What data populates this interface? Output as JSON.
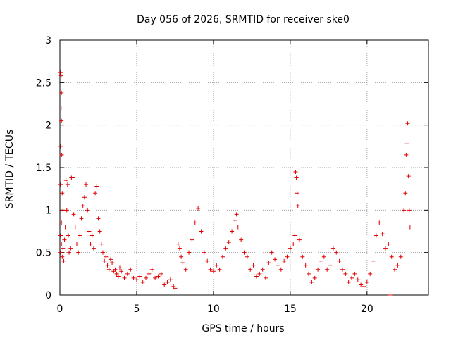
{
  "chart_data": {
    "type": "scatter",
    "title": "Day 056 of 2026, SRMTID for receiver ske0",
    "xlabel": "GPS time / hours",
    "ylabel": "SRMTID / TECUs",
    "xlim": [
      0,
      24
    ],
    "ylim": [
      0,
      3
    ],
    "xticks": [
      0,
      5,
      10,
      15,
      20
    ],
    "xtick_labels": [
      "0",
      "5",
      "10",
      "15",
      "20"
    ],
    "yticks": [
      0,
      0.5,
      1,
      1.5,
      2,
      2.5,
      3
    ],
    "ytick_labels": [
      "0",
      "0.5",
      "1",
      "1.5",
      "2",
      "2.5",
      "3"
    ],
    "grid": true,
    "marker": "+",
    "color": "#e00000",
    "series": [
      {
        "name": "SRMTID",
        "points": [
          [
            0.05,
            2.62
          ],
          [
            0.08,
            2.58
          ],
          [
            0.1,
            2.38
          ],
          [
            0.08,
            2.2
          ],
          [
            0.1,
            2.05
          ],
          [
            0.05,
            1.75
          ],
          [
            0.12,
            1.65
          ],
          [
            0.05,
            1.3
          ],
          [
            0.15,
            1.2
          ],
          [
            0.2,
            1.0
          ],
          [
            0.1,
            0.85
          ],
          [
            0.05,
            0.7
          ],
          [
            0.1,
            0.6
          ],
          [
            0.2,
            0.55
          ],
          [
            0.05,
            0.5
          ],
          [
            0.15,
            0.45
          ],
          [
            0.25,
            0.4
          ],
          [
            0.3,
            0.65
          ],
          [
            0.35,
            0.8
          ],
          [
            0.4,
            1.35
          ],
          [
            0.5,
            1.3
          ],
          [
            0.45,
            1.0
          ],
          [
            0.55,
            0.7
          ],
          [
            0.6,
            0.5
          ],
          [
            0.7,
            0.55
          ],
          [
            0.75,
            1.38
          ],
          [
            0.85,
            1.38
          ],
          [
            0.9,
            0.95
          ],
          [
            1.0,
            0.8
          ],
          [
            1.1,
            0.6
          ],
          [
            1.2,
            0.5
          ],
          [
            1.3,
            0.7
          ],
          [
            1.4,
            0.9
          ],
          [
            1.5,
            1.05
          ],
          [
            1.6,
            1.15
          ],
          [
            1.7,
            1.3
          ],
          [
            1.8,
            1.0
          ],
          [
            1.9,
            0.75
          ],
          [
            2.0,
            0.6
          ],
          [
            2.1,
            0.7
          ],
          [
            2.2,
            0.55
          ],
          [
            2.3,
            1.2
          ],
          [
            2.4,
            1.28
          ],
          [
            2.5,
            0.9
          ],
          [
            2.6,
            0.75
          ],
          [
            2.7,
            0.6
          ],
          [
            2.8,
            0.5
          ],
          [
            2.9,
            0.4
          ],
          [
            3.0,
            0.45
          ],
          [
            3.1,
            0.35
          ],
          [
            3.2,
            0.3
          ],
          [
            3.3,
            0.42
          ],
          [
            3.4,
            0.38
          ],
          [
            3.5,
            0.28
          ],
          [
            3.6,
            0.3
          ],
          [
            3.7,
            0.25
          ],
          [
            3.8,
            0.22
          ],
          [
            3.9,
            0.32
          ],
          [
            4.0,
            0.28
          ],
          [
            4.2,
            0.2
          ],
          [
            4.4,
            0.25
          ],
          [
            4.6,
            0.3
          ],
          [
            4.8,
            0.2
          ],
          [
            5.0,
            0.18
          ],
          [
            5.2,
            0.22
          ],
          [
            5.4,
            0.15
          ],
          [
            5.6,
            0.2
          ],
          [
            5.8,
            0.25
          ],
          [
            6.0,
            0.3
          ],
          [
            6.2,
            0.2
          ],
          [
            6.4,
            0.22
          ],
          [
            6.6,
            0.25
          ],
          [
            6.8,
            0.12
          ],
          [
            7.0,
            0.15
          ],
          [
            7.2,
            0.18
          ],
          [
            7.4,
            0.1
          ],
          [
            7.5,
            0.08
          ],
          [
            7.7,
            0.6
          ],
          [
            7.8,
            0.55
          ],
          [
            7.9,
            0.45
          ],
          [
            8.0,
            0.38
          ],
          [
            8.2,
            0.3
          ],
          [
            8.4,
            0.5
          ],
          [
            8.6,
            0.65
          ],
          [
            8.8,
            0.85
          ],
          [
            9.0,
            1.02
          ],
          [
            9.2,
            0.75
          ],
          [
            9.4,
            0.5
          ],
          [
            9.6,
            0.4
          ],
          [
            9.8,
            0.3
          ],
          [
            10.0,
            0.28
          ],
          [
            10.2,
            0.35
          ],
          [
            10.4,
            0.3
          ],
          [
            10.6,
            0.45
          ],
          [
            10.8,
            0.55
          ],
          [
            11.0,
            0.62
          ],
          [
            11.2,
            0.75
          ],
          [
            11.4,
            0.88
          ],
          [
            11.5,
            0.95
          ],
          [
            11.6,
            0.8
          ],
          [
            11.8,
            0.65
          ],
          [
            12.0,
            0.5
          ],
          [
            12.2,
            0.45
          ],
          [
            12.4,
            0.3
          ],
          [
            12.6,
            0.35
          ],
          [
            12.8,
            0.22
          ],
          [
            13.0,
            0.25
          ],
          [
            13.2,
            0.3
          ],
          [
            13.4,
            0.2
          ],
          [
            13.6,
            0.38
          ],
          [
            13.8,
            0.5
          ],
          [
            14.0,
            0.42
          ],
          [
            14.2,
            0.35
          ],
          [
            14.4,
            0.3
          ],
          [
            14.6,
            0.4
          ],
          [
            14.8,
            0.45
          ],
          [
            15.0,
            0.55
          ],
          [
            15.2,
            0.6
          ],
          [
            15.3,
            0.7
          ],
          [
            15.35,
            1.45
          ],
          [
            15.4,
            1.38
          ],
          [
            15.45,
            1.2
          ],
          [
            15.5,
            1.05
          ],
          [
            15.6,
            0.65
          ],
          [
            15.8,
            0.45
          ],
          [
            16.0,
            0.35
          ],
          [
            16.2,
            0.25
          ],
          [
            16.4,
            0.15
          ],
          [
            16.6,
            0.2
          ],
          [
            16.8,
            0.3
          ],
          [
            17.0,
            0.4
          ],
          [
            17.2,
            0.45
          ],
          [
            17.4,
            0.3
          ],
          [
            17.6,
            0.35
          ],
          [
            17.8,
            0.55
          ],
          [
            18.0,
            0.5
          ],
          [
            18.2,
            0.4
          ],
          [
            18.4,
            0.3
          ],
          [
            18.6,
            0.25
          ],
          [
            18.8,
            0.15
          ],
          [
            19.0,
            0.2
          ],
          [
            19.2,
            0.25
          ],
          [
            19.4,
            0.18
          ],
          [
            19.6,
            0.12
          ],
          [
            19.8,
            0.1
          ],
          [
            20.0,
            0.15
          ],
          [
            20.2,
            0.25
          ],
          [
            20.4,
            0.4
          ],
          [
            20.6,
            0.7
          ],
          [
            20.8,
            0.85
          ],
          [
            21.0,
            0.72
          ],
          [
            21.2,
            0.55
          ],
          [
            21.4,
            0.6
          ],
          [
            21.5,
            0.0
          ],
          [
            21.6,
            0.45
          ],
          [
            21.8,
            0.3
          ],
          [
            22.0,
            0.35
          ],
          [
            22.2,
            0.45
          ],
          [
            22.4,
            1.0
          ],
          [
            22.5,
            1.2
          ],
          [
            22.55,
            1.65
          ],
          [
            22.6,
            1.78
          ],
          [
            22.65,
            2.02
          ],
          [
            22.7,
            1.4
          ],
          [
            22.75,
            1.0
          ],
          [
            22.8,
            0.8
          ]
        ]
      }
    ]
  }
}
